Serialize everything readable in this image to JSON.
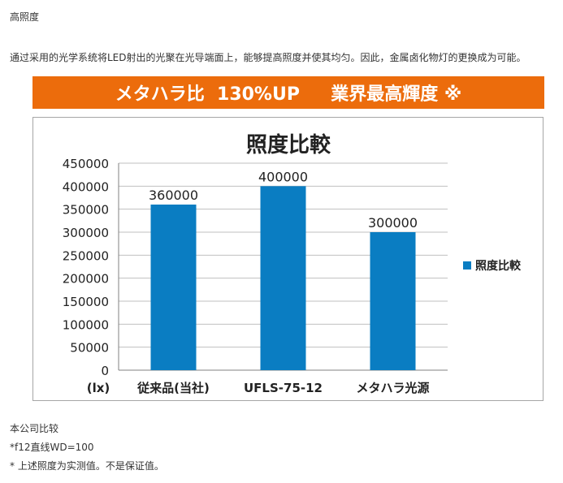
{
  "heading": "高照度",
  "intro": "通过采用的光学系统将LED射出的光聚在光导端面上，能够提高照度并使其均匀。因此，金属卤化物灯的更换成为可能。",
  "banner": "メタハラ比  130%UP     業界最高輝度 ※",
  "colors": {
    "banner": "#ec6c0c",
    "bar": "#0a7dc2",
    "border": "#a6a6a6"
  },
  "chart_data": {
    "type": "bar",
    "title": "照度比較",
    "unit_label": "(lx)",
    "categories": [
      "従来品(当社)",
      "UFLS-75-12",
      "メタハラ光源"
    ],
    "series": [
      {
        "name": "照度比較",
        "values": [
          360000,
          400000,
          300000
        ]
      }
    ],
    "data_labels": [
      "360000",
      "400000",
      "300000"
    ],
    "ylim": [
      0,
      450000
    ],
    "yticks": [
      "0",
      "50000",
      "100000",
      "150000",
      "200000",
      "250000",
      "300000",
      "350000",
      "400000",
      "450000"
    ],
    "grid": true,
    "legend": "right"
  },
  "notes": [
    "本公司比较",
    "*f12直线WD=100",
    "* 上述照度为实测值。不是保证值。"
  ]
}
